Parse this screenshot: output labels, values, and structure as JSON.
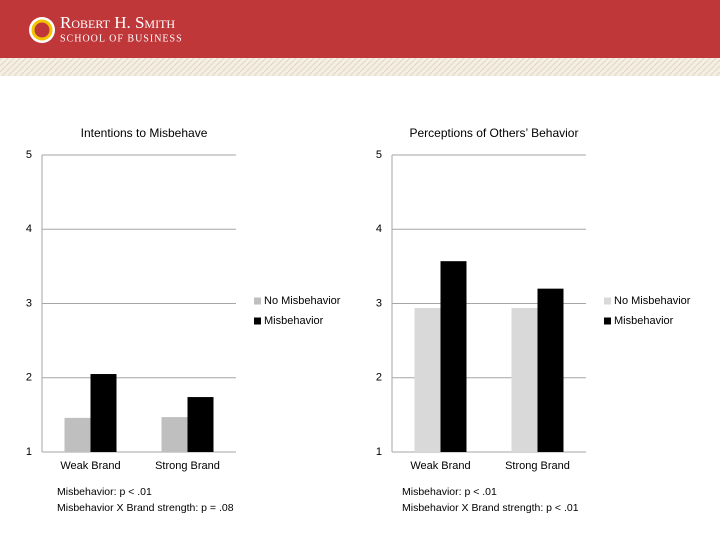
{
  "header": {
    "title": "Robert H. Smith",
    "subtitle": "School of Business"
  },
  "chart_data": [
    {
      "type": "bar",
      "title": "Intentions to Misbehave",
      "categories": [
        "Weak Brand",
        "Strong Brand"
      ],
      "series": [
        {
          "name": "No Misbehavior",
          "color": "#bfbfbf",
          "values": [
            1.46,
            1.47
          ]
        },
        {
          "name": "Misbehavior",
          "color": "#000000",
          "values": [
            2.05,
            1.74
          ]
        }
      ],
      "ylim": [
        1,
        5
      ],
      "yticks": [
        1,
        2,
        3,
        4,
        5
      ],
      "grid": true,
      "legend": "right",
      "annotations": [
        "Misbehavior: p < .01",
        "Misbehavior X Brand strength: p = .08"
      ]
    },
    {
      "type": "bar",
      "title": "Perceptions of Others’ Behavior",
      "categories": [
        "Weak Brand",
        "Strong Brand"
      ],
      "series": [
        {
          "name": "No Misbehavior",
          "color": "#d9d9d9",
          "values": [
            2.94,
            2.94
          ]
        },
        {
          "name": "Misbehavior",
          "color": "#000000",
          "values": [
            3.57,
            3.2
          ]
        }
      ],
      "ylim": [
        1,
        5
      ],
      "yticks": [
        1,
        2,
        3,
        4,
        5
      ],
      "grid": true,
      "legend": "right",
      "annotations": [
        "Misbehavior: p < .01",
        "Misbehavior X Brand strength: p < .01"
      ]
    }
  ]
}
